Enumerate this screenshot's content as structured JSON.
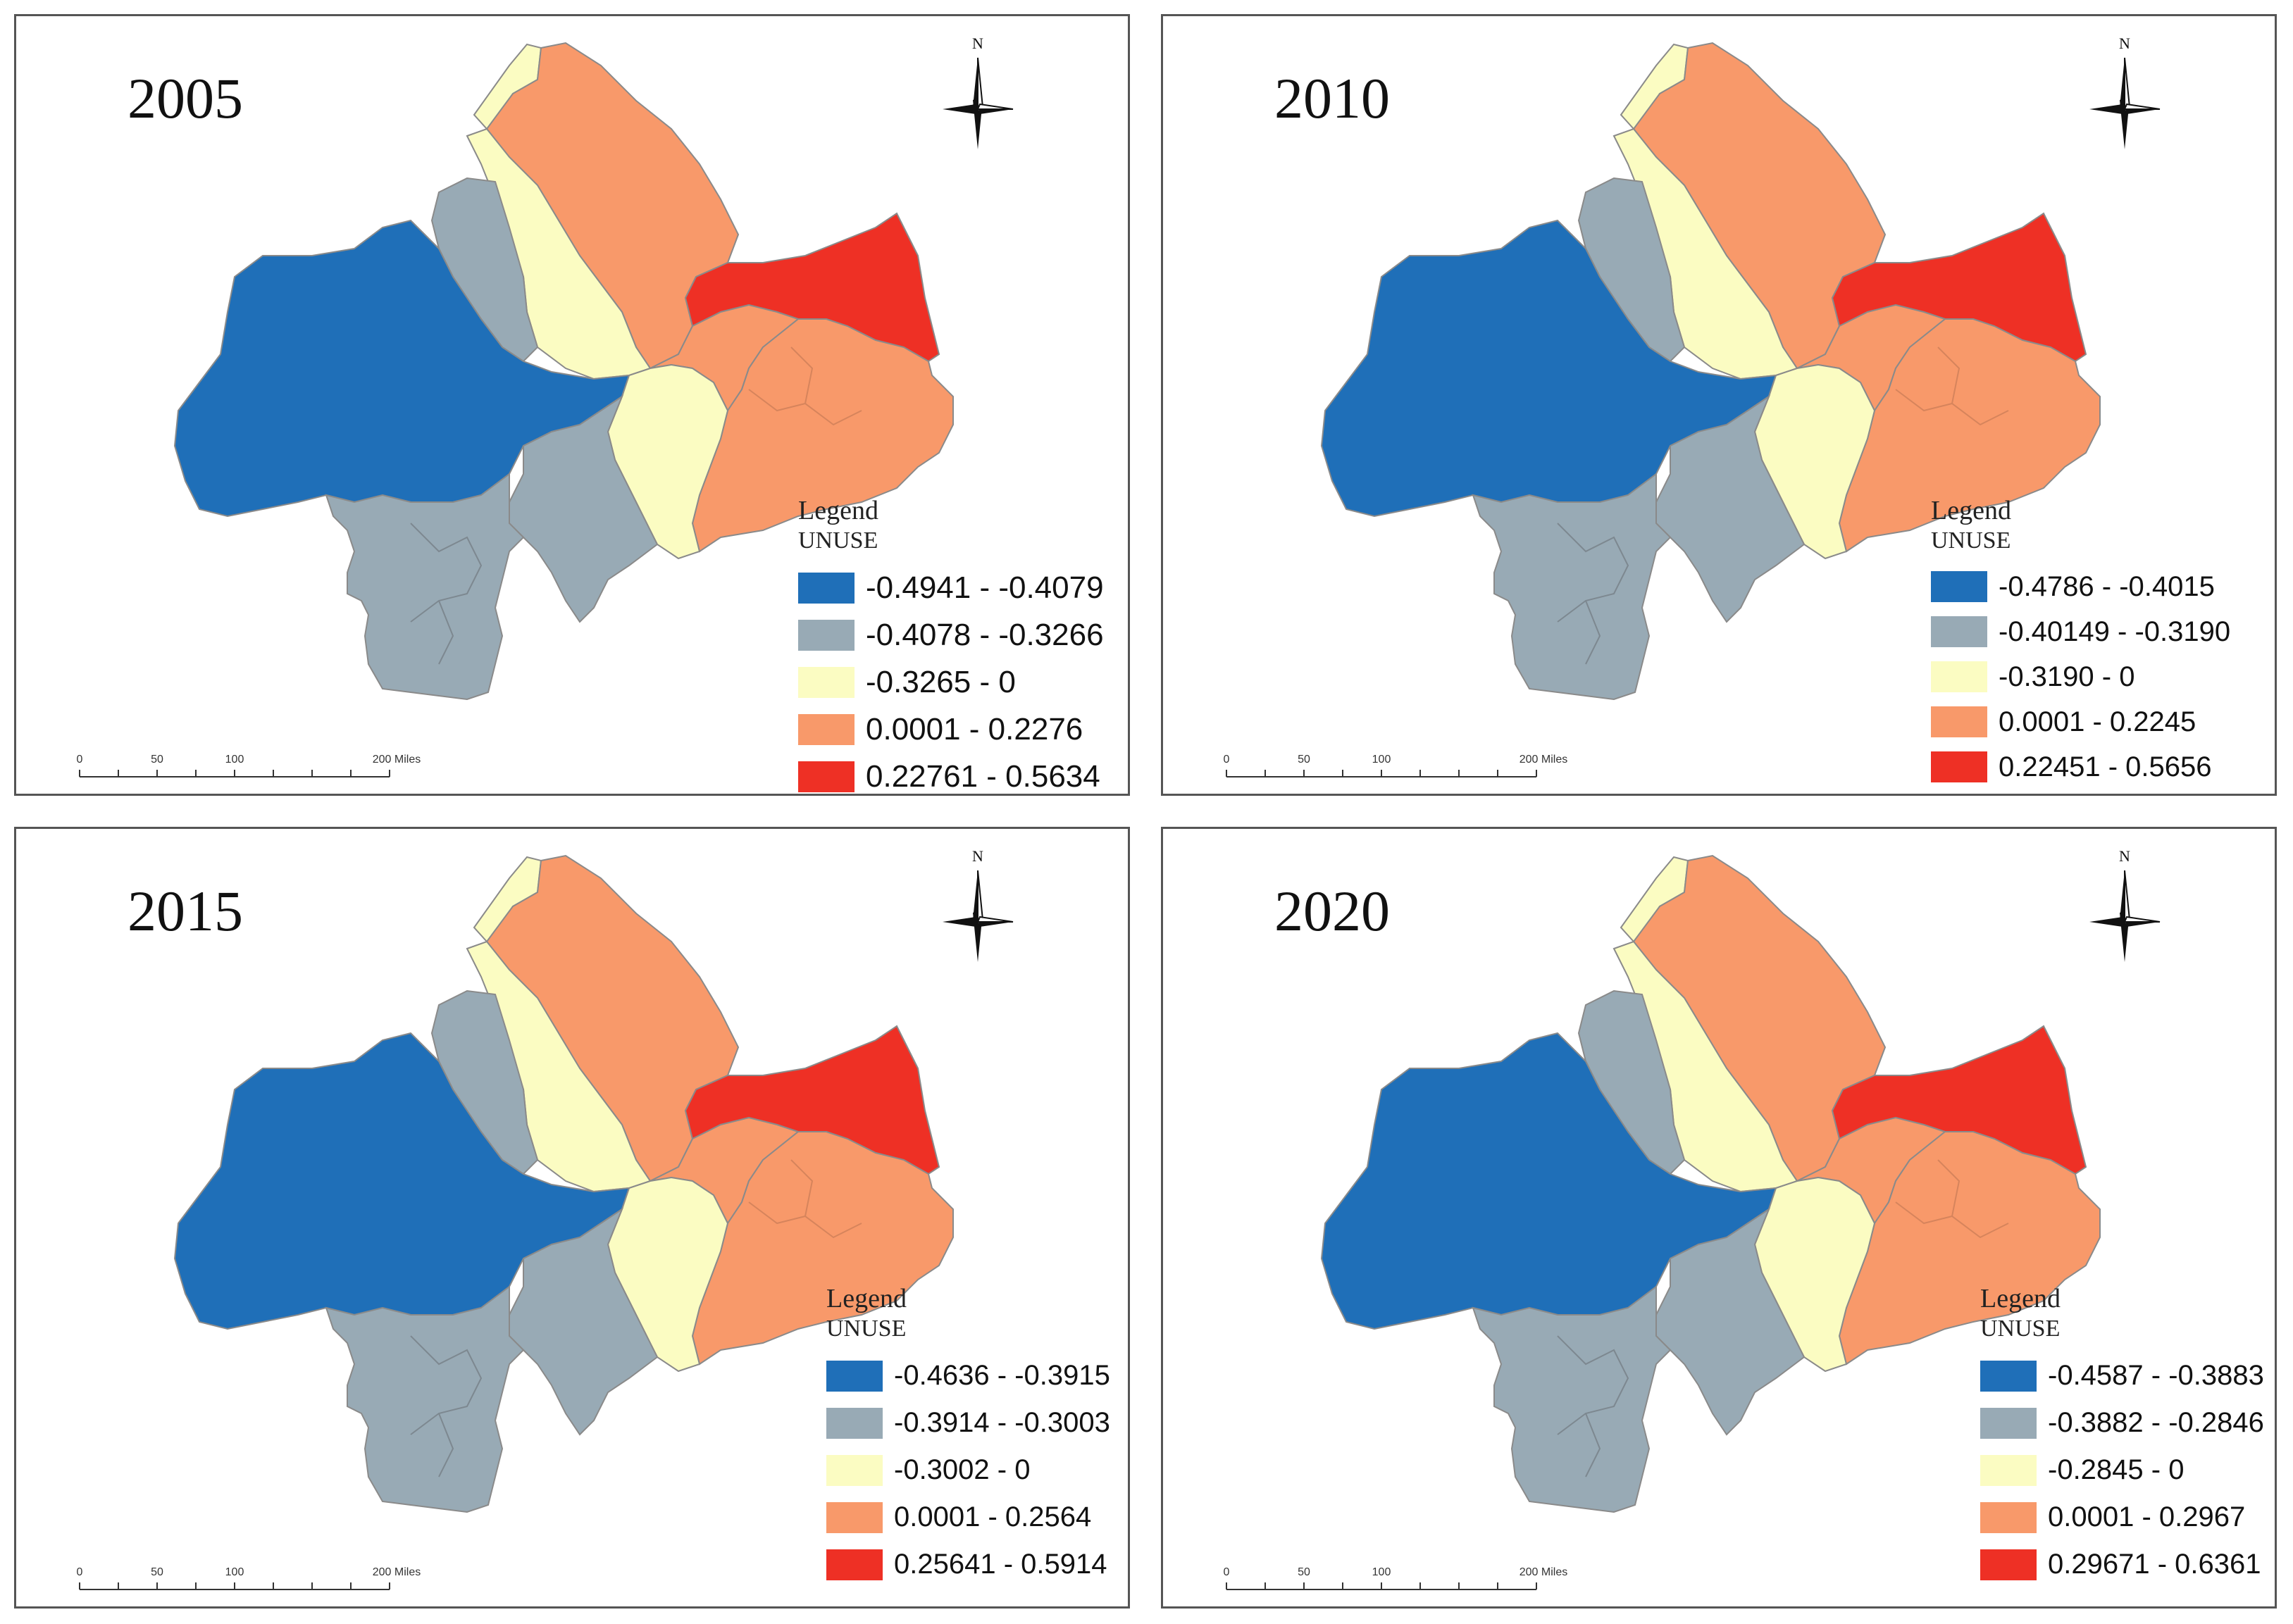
{
  "colors": {
    "class1": "#1f6fb8",
    "class2": "#98aab5",
    "class3": "#fbfcc2",
    "class4": "#f8996a",
    "class5": "#ee3025"
  },
  "north_label": "N",
  "scale": {
    "ticks": [
      "0",
      "50",
      "100",
      "200 Miles"
    ]
  },
  "panels": [
    {
      "year": "2005",
      "legend_title": "Legend",
      "legend_subtitle": "UNUSE",
      "classes": [
        "-0.4941 - -0.4079",
        "-0.4078 - -0.3266",
        "-0.3265 - 0",
        "0.0001 - 0.2276",
        "0.22761 - 0.5634"
      ]
    },
    {
      "year": "2010",
      "legend_title": "Legend",
      "legend_subtitle": "UNUSE",
      "classes": [
        "-0.4786 - -0.4015",
        "-0.40149 - -0.3190",
        "-0.3190 - 0",
        "0.0001 - 0.2245",
        "0.22451 - 0.5656"
      ]
    },
    {
      "year": "2015",
      "legend_title": "Legend",
      "legend_subtitle": "UNUSE",
      "classes": [
        "-0.4636 - -0.3915",
        "-0.3914 - -0.3003",
        "-0.3002 - 0",
        "0.0001 - 0.2564",
        "0.25641 - 0.5914"
      ]
    },
    {
      "year": "2020",
      "legend_title": "Legend",
      "legend_subtitle": "UNUSE",
      "classes": [
        "-0.4587 - -0.3883",
        "-0.3882 - -0.2846",
        "-0.2845 - 0",
        "0.0001 - 0.2967",
        "0.29671 - 0.6361"
      ]
    }
  ]
}
